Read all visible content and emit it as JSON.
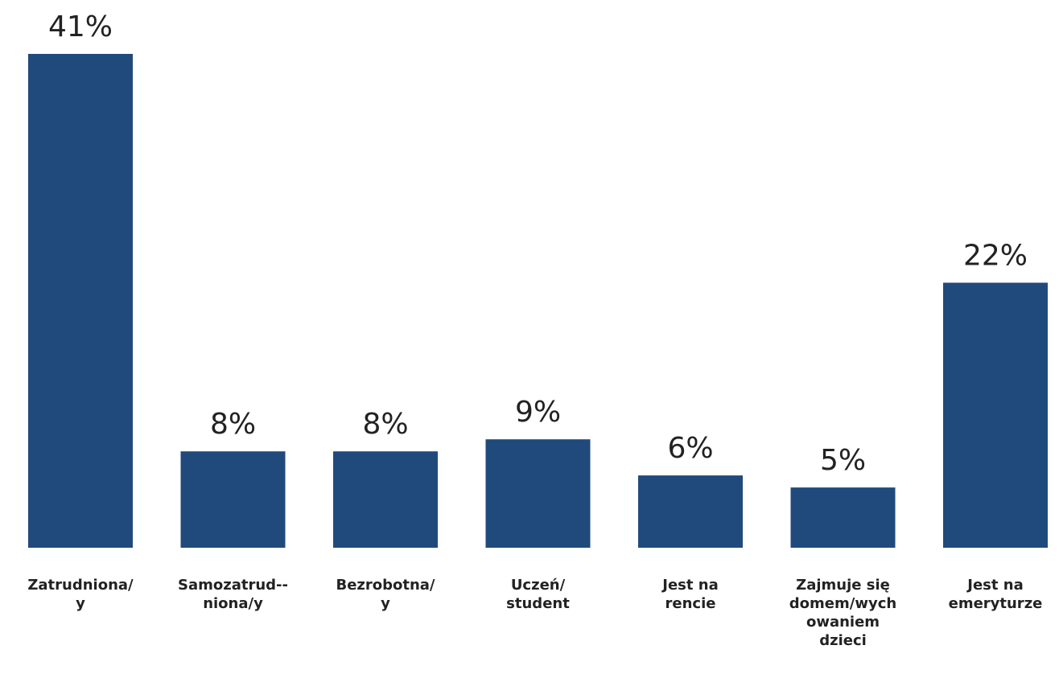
{
  "chart_data": {
    "type": "bar",
    "title": "",
    "xlabel": "",
    "ylabel": "",
    "categories": [
      [
        "Zatrudniona/",
        "y"
      ],
      [
        "Samozatrud--",
        "niona/y"
      ],
      [
        "Bezrobotna/",
        "y"
      ],
      [
        "Uczeń/",
        "student"
      ],
      [
        "Jest na",
        "rencie"
      ],
      [
        "Zajmuje się",
        "domem/wych",
        "owaniem",
        "dzieci"
      ],
      [
        "Jest na",
        "emeryturze"
      ]
    ],
    "values": [
      41,
      8,
      8,
      9,
      6,
      5,
      22
    ],
    "value_labels": [
      "41%",
      "8%",
      "8%",
      "9%",
      "6%",
      "5%",
      "22%"
    ],
    "ylim": [
      0,
      41
    ],
    "grid": false,
    "legend": "none",
    "colors": {
      "bar": "#204a7c",
      "text": "#222222"
    }
  }
}
